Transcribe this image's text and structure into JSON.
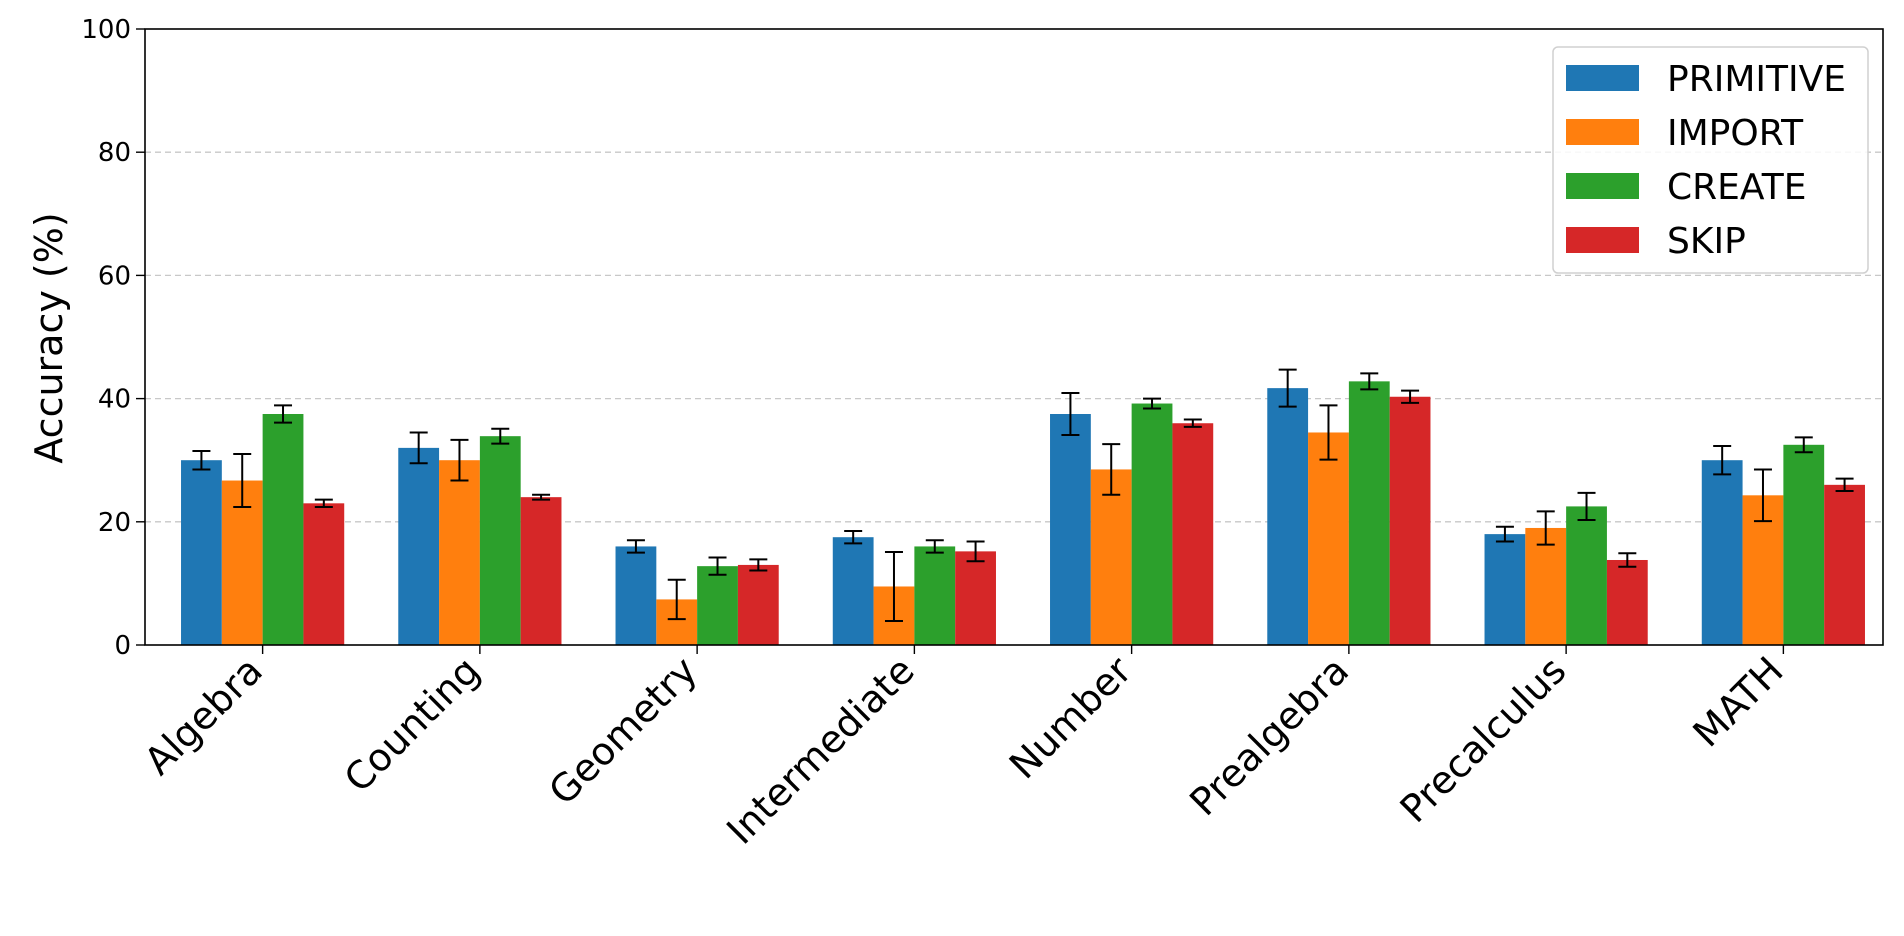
{
  "chart_data": {
    "type": "bar",
    "title": "",
    "xlabel": "",
    "ylabel": "Accuracy (%)",
    "ylim": [
      0,
      100
    ],
    "yticks": [
      0,
      20,
      40,
      60,
      80,
      100
    ],
    "grid": "horizontal dashed",
    "legend_position": "top-right",
    "categories": [
      "Algebra",
      "Counting",
      "Geometry",
      "Intermediate",
      "Number",
      "Prealgebra",
      "Precalculus",
      "MATH"
    ],
    "series": [
      {
        "name": "PRIMITIVE",
        "color": "#1f77b4",
        "values": [
          30.0,
          32.0,
          16.0,
          17.5,
          37.5,
          41.7,
          18.0,
          30.0
        ],
        "errors": [
          1.5,
          2.5,
          1.0,
          1.0,
          3.4,
          3.0,
          1.2,
          2.3
        ]
      },
      {
        "name": "IMPORT",
        "color": "#ff7f0e",
        "values": [
          26.7,
          30.0,
          7.4,
          9.5,
          28.5,
          34.5,
          19.0,
          24.3
        ],
        "errors": [
          4.3,
          3.3,
          3.2,
          5.6,
          4.1,
          4.4,
          2.7,
          4.2
        ]
      },
      {
        "name": "CREATE",
        "color": "#2ca02c",
        "values": [
          37.5,
          33.9,
          12.8,
          16.0,
          39.2,
          42.8,
          22.5,
          32.5
        ],
        "errors": [
          1.4,
          1.2,
          1.4,
          1.0,
          0.8,
          1.3,
          2.2,
          1.2
        ]
      },
      {
        "name": "SKIP",
        "color": "#d62728",
        "values": [
          23.0,
          24.0,
          13.0,
          15.2,
          36.0,
          40.3,
          13.8,
          26.0
        ],
        "errors": [
          0.6,
          0.4,
          0.9,
          1.6,
          0.6,
          1.0,
          1.1,
          1.0
        ]
      }
    ]
  }
}
